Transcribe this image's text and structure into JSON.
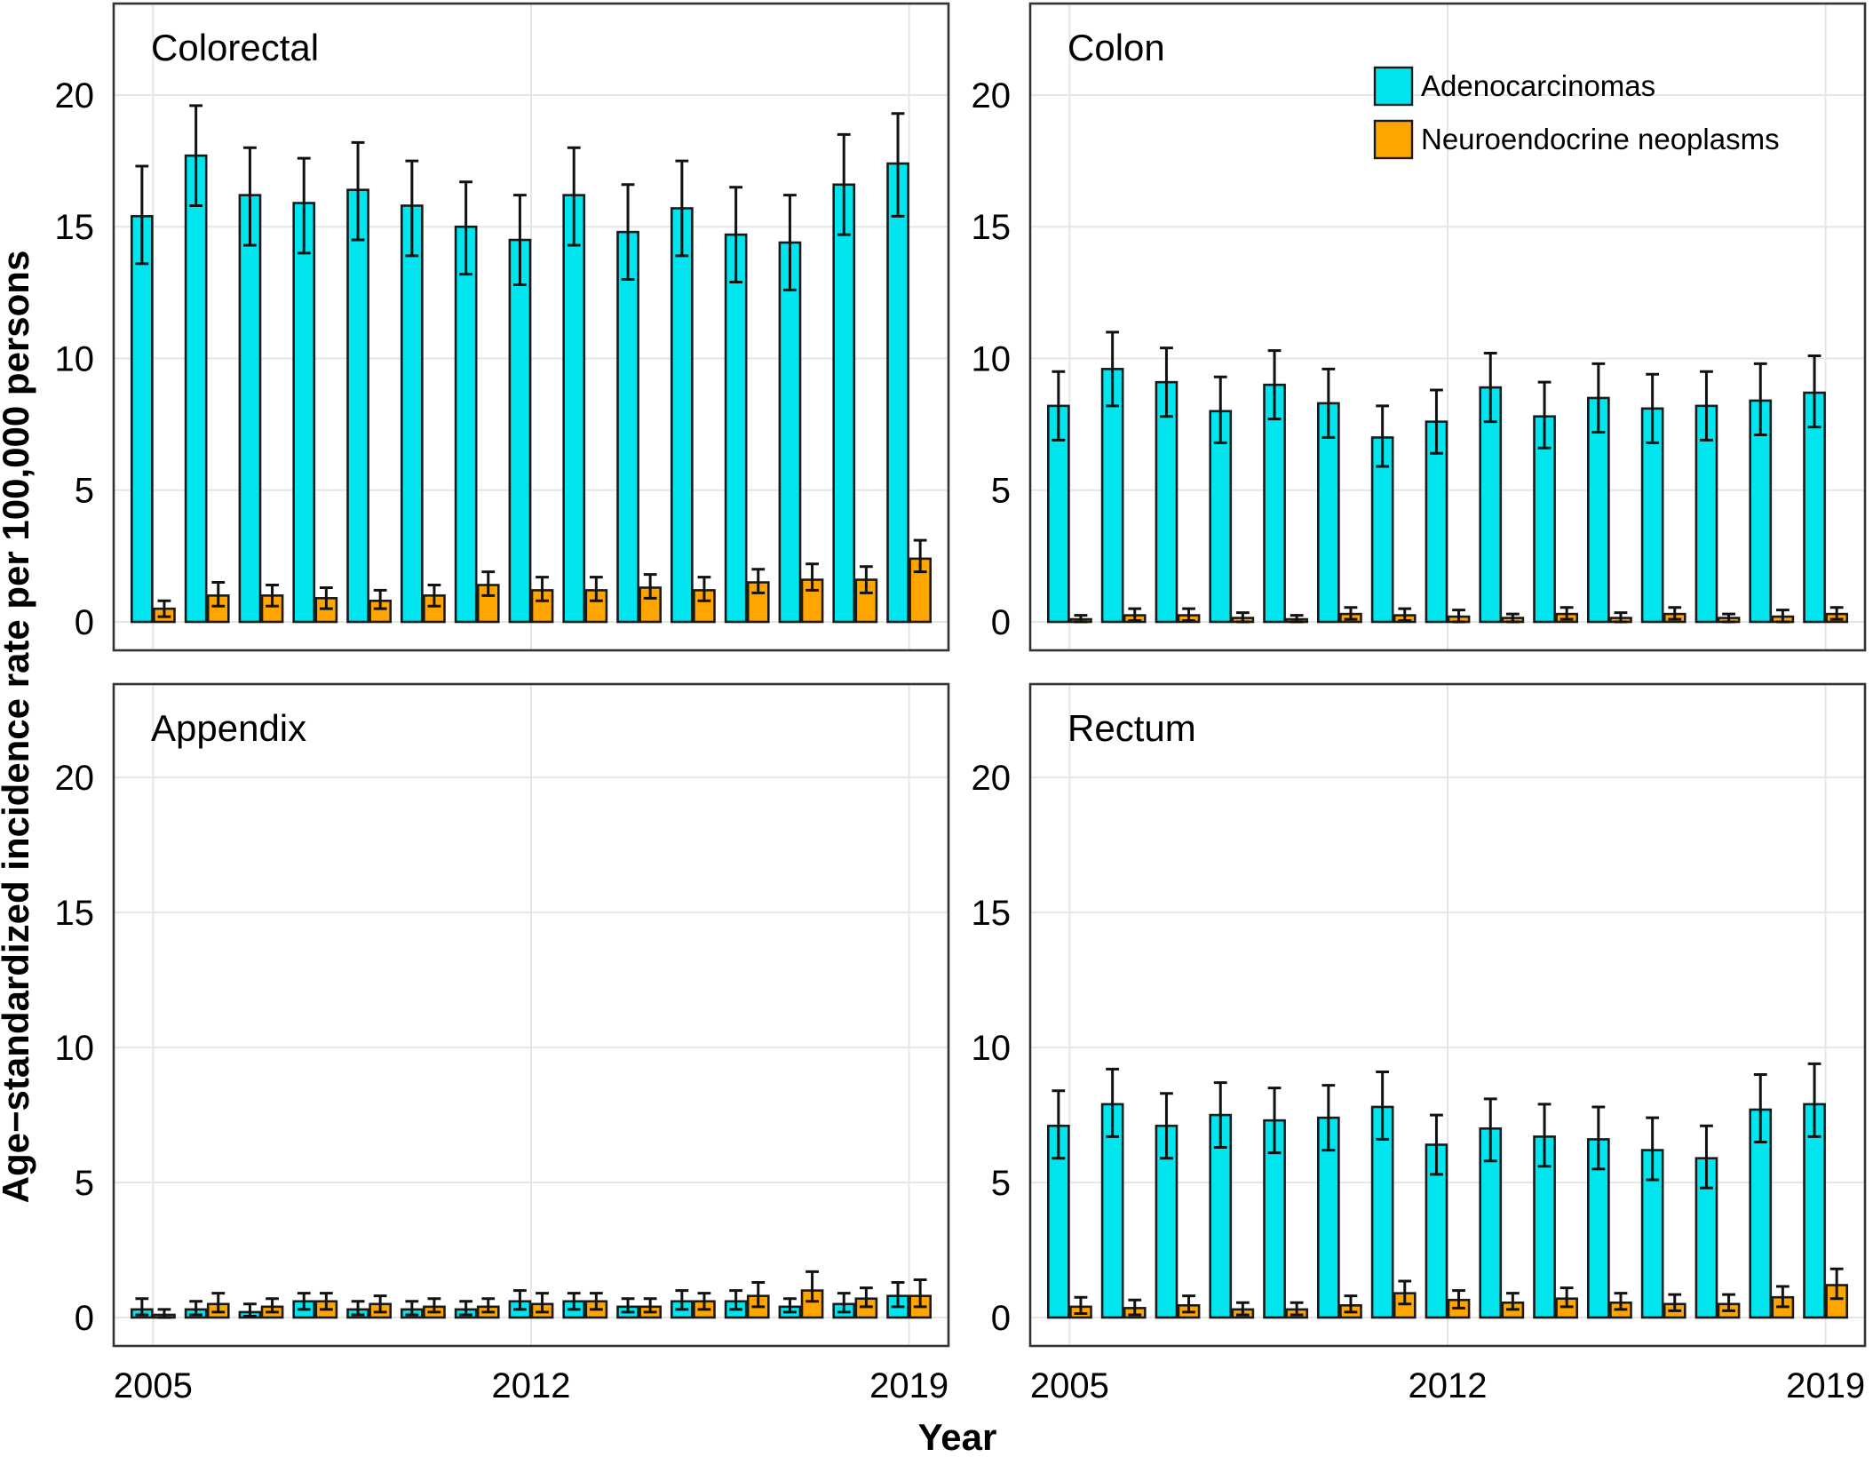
{
  "chart_data": {
    "type": "bar",
    "ylabel": "Age−standardized incidence rate per 100,000 persons",
    "xlabel": "Year",
    "ylim": [
      0,
      23
    ],
    "yticks": [
      0,
      5,
      10,
      15,
      20
    ],
    "xticks": [
      "2005",
      "2012",
      "2019"
    ],
    "categories": [
      "2005",
      "2006",
      "2007",
      "2008",
      "2009",
      "2010",
      "2011",
      "2012",
      "2013",
      "2014",
      "2015",
      "2016",
      "2017",
      "2018",
      "2019"
    ],
    "colors": {
      "Adenocarcinomas": "#00e5ee",
      "Neuroendocrine neoplasms": "#ffa500"
    },
    "legend": {
      "position": "top-right of Colon panel",
      "entries": [
        "Adenocarcinomas",
        "Neuroendocrine neoplasms"
      ]
    },
    "panels": [
      {
        "title": "Colorectal",
        "series": [
          {
            "name": "Adenocarcinomas",
            "values": [
              15.4,
              17.7,
              16.2,
              15.9,
              16.4,
              15.8,
              15.0,
              14.5,
              16.2,
              14.8,
              15.7,
              14.7,
              14.4,
              16.6,
              17.4
            ],
            "lower": [
              13.6,
              15.8,
              14.3,
              14.0,
              14.5,
              13.9,
              13.2,
              12.8,
              14.3,
              13.0,
              13.9,
              12.9,
              12.6,
              14.7,
              15.4
            ],
            "upper": [
              17.3,
              19.6,
              18.0,
              17.6,
              18.2,
              17.5,
              16.7,
              16.2,
              18.0,
              16.6,
              17.5,
              16.5,
              16.2,
              18.5,
              19.3
            ]
          },
          {
            "name": "Neuroendocrine neoplasms",
            "values": [
              0.5,
              1.0,
              1.0,
              0.9,
              0.8,
              1.0,
              1.4,
              1.2,
              1.2,
              1.3,
              1.2,
              1.5,
              1.6,
              1.6,
              2.4
            ],
            "lower": [
              0.2,
              0.6,
              0.6,
              0.5,
              0.5,
              0.6,
              1.0,
              0.8,
              0.8,
              0.9,
              0.8,
              1.1,
              1.2,
              1.1,
              1.9
            ],
            "upper": [
              0.8,
              1.5,
              1.4,
              1.3,
              1.2,
              1.4,
              1.9,
              1.7,
              1.7,
              1.8,
              1.7,
              2.0,
              2.2,
              2.1,
              3.1
            ]
          }
        ]
      },
      {
        "title": "Colon",
        "series": [
          {
            "name": "Adenocarcinomas",
            "values": [
              8.2,
              9.6,
              9.1,
              8.0,
              9.0,
              8.3,
              7.0,
              7.6,
              8.9,
              7.8,
              8.5,
              8.1,
              8.2,
              8.4,
              8.7
            ],
            "lower": [
              6.9,
              8.2,
              7.8,
              6.8,
              7.7,
              7.0,
              5.9,
              6.4,
              7.6,
              6.6,
              7.2,
              6.8,
              6.9,
              7.1,
              7.4
            ],
            "upper": [
              9.5,
              11.0,
              10.4,
              9.3,
              10.3,
              9.6,
              8.2,
              8.8,
              10.2,
              9.1,
              9.8,
              9.4,
              9.5,
              9.8,
              10.1
            ]
          },
          {
            "name": "Neuroendocrine neoplasms",
            "values": [
              0.1,
              0.25,
              0.25,
              0.15,
              0.1,
              0.3,
              0.25,
              0.2,
              0.15,
              0.3,
              0.15,
              0.3,
              0.15,
              0.2,
              0.3
            ],
            "lower": [
              0.0,
              0.05,
              0.05,
              0.0,
              0.0,
              0.1,
              0.05,
              0.0,
              0.0,
              0.1,
              0.0,
              0.1,
              0.0,
              0.0,
              0.1
            ],
            "upper": [
              0.25,
              0.5,
              0.5,
              0.35,
              0.25,
              0.55,
              0.5,
              0.45,
              0.3,
              0.55,
              0.35,
              0.55,
              0.3,
              0.45,
              0.55
            ]
          }
        ]
      },
      {
        "title": "Appendix",
        "series": [
          {
            "name": "Adenocarcinomas",
            "values": [
              0.3,
              0.3,
              0.2,
              0.6,
              0.3,
              0.3,
              0.3,
              0.6,
              0.6,
              0.4,
              0.6,
              0.6,
              0.4,
              0.5,
              0.8
            ],
            "lower": [
              0.1,
              0.1,
              0.05,
              0.3,
              0.1,
              0.1,
              0.1,
              0.3,
              0.3,
              0.2,
              0.3,
              0.3,
              0.2,
              0.2,
              0.4
            ],
            "upper": [
              0.7,
              0.6,
              0.5,
              0.9,
              0.6,
              0.6,
              0.6,
              1.0,
              0.9,
              0.7,
              1.0,
              1.0,
              0.7,
              0.9,
              1.3
            ]
          },
          {
            "name": "Neuroendocrine neoplasms",
            "values": [
              0.1,
              0.5,
              0.4,
              0.6,
              0.5,
              0.4,
              0.4,
              0.5,
              0.6,
              0.4,
              0.6,
              0.8,
              1.0,
              0.7,
              0.8
            ],
            "lower": [
              0.0,
              0.2,
              0.2,
              0.3,
              0.2,
              0.2,
              0.2,
              0.2,
              0.3,
              0.2,
              0.3,
              0.4,
              0.6,
              0.4,
              0.4
            ],
            "upper": [
              0.3,
              0.9,
              0.7,
              0.9,
              0.8,
              0.7,
              0.7,
              0.9,
              0.9,
              0.7,
              0.9,
              1.3,
              1.7,
              1.1,
              1.4
            ]
          }
        ]
      },
      {
        "title": "Rectum",
        "series": [
          {
            "name": "Adenocarcinomas",
            "values": [
              7.1,
              7.9,
              7.1,
              7.5,
              7.3,
              7.4,
              7.8,
              6.4,
              7.0,
              6.7,
              6.6,
              6.2,
              5.9,
              7.7,
              7.9
            ],
            "lower": [
              5.9,
              6.7,
              5.9,
              6.3,
              6.1,
              6.2,
              6.6,
              5.3,
              5.8,
              5.6,
              5.5,
              5.1,
              4.8,
              6.5,
              6.7
            ],
            "upper": [
              8.4,
              9.2,
              8.3,
              8.7,
              8.5,
              8.6,
              9.1,
              7.5,
              8.1,
              7.9,
              7.8,
              7.4,
              7.1,
              9.0,
              9.4
            ]
          },
          {
            "name": "Neuroendocrine neoplasms",
            "values": [
              0.4,
              0.35,
              0.45,
              0.3,
              0.3,
              0.45,
              0.9,
              0.65,
              0.55,
              0.7,
              0.55,
              0.5,
              0.5,
              0.75,
              1.2
            ],
            "lower": [
              0.15,
              0.1,
              0.2,
              0.1,
              0.1,
              0.2,
              0.5,
              0.35,
              0.3,
              0.4,
              0.3,
              0.25,
              0.25,
              0.4,
              0.7
            ],
            "upper": [
              0.75,
              0.65,
              0.8,
              0.55,
              0.55,
              0.8,
              1.35,
              1.0,
              0.9,
              1.1,
              0.9,
              0.85,
              0.85,
              1.15,
              1.8
            ]
          }
        ]
      }
    ]
  }
}
